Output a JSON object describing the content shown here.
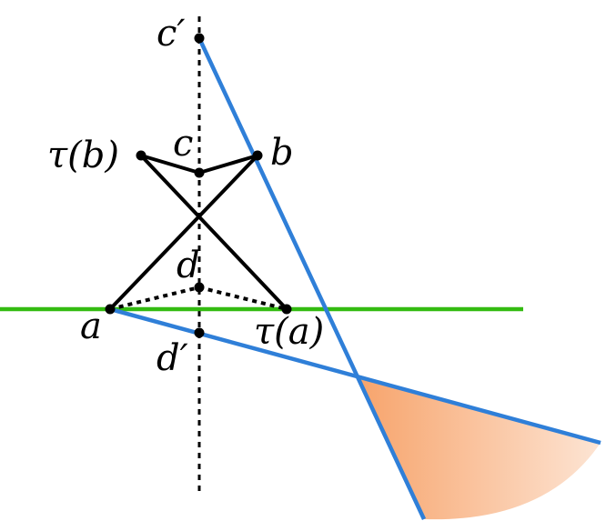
{
  "diagram": {
    "labels": {
      "c_prime": "c′",
      "c": "c",
      "b": "b",
      "tau_b": "τ(b)",
      "d": "d",
      "a": "a",
      "tau_a": "τ(a)",
      "d_prime": "d′"
    },
    "colors": {
      "green_line": "#33bb11",
      "blue_lines": "#2f7fd8",
      "black_segments": "#000000",
      "region_fill_start": "#f7a46c",
      "region_fill_end": "#fde6d6"
    }
  }
}
